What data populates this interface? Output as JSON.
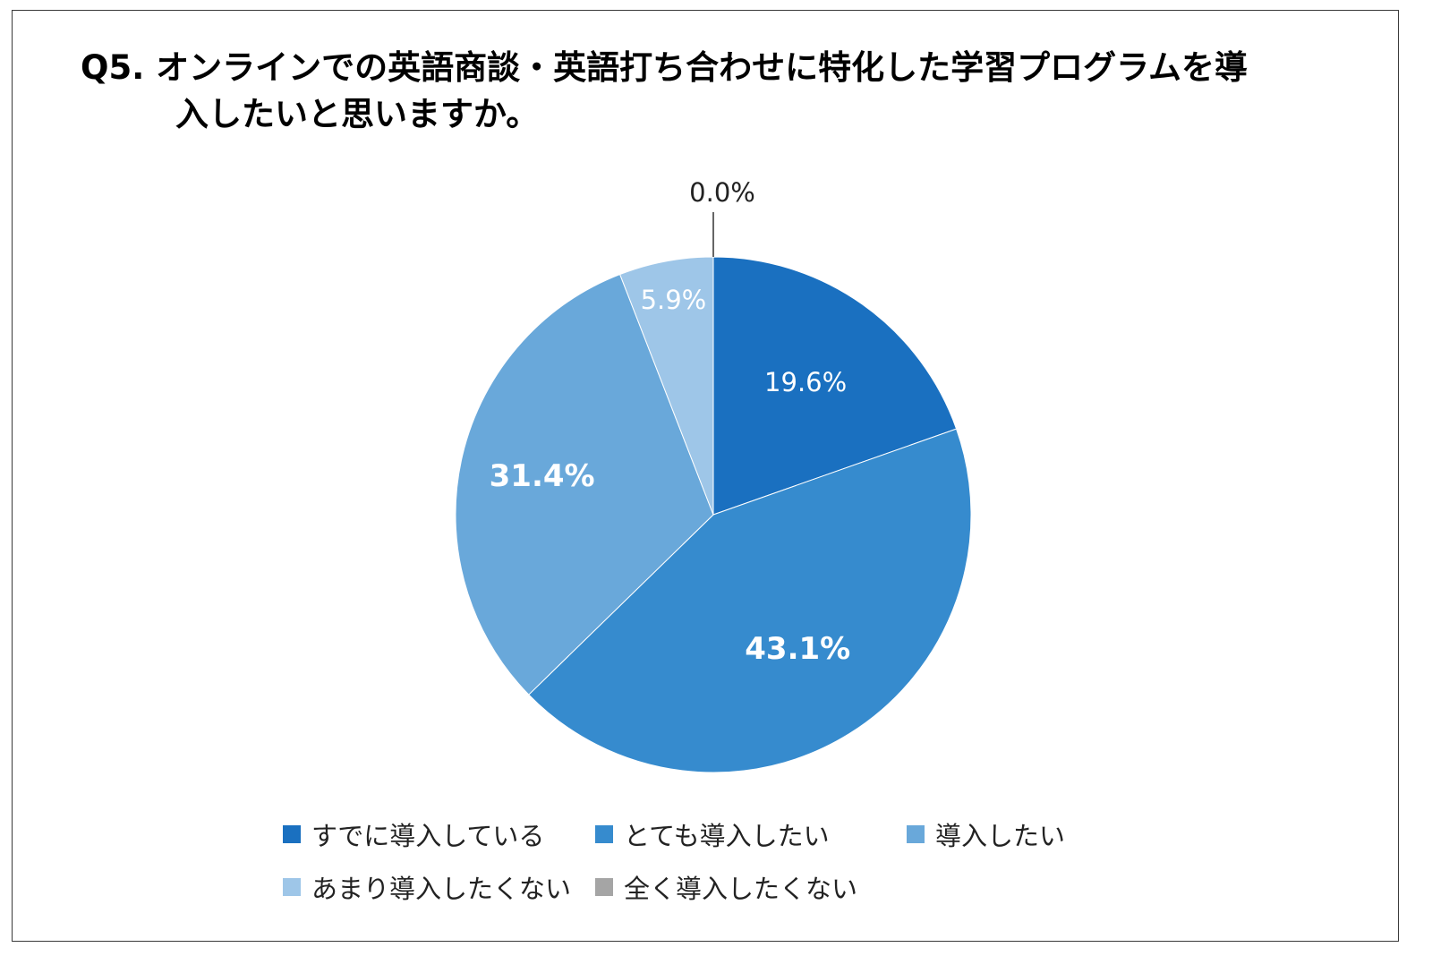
{
  "title": {
    "line1": "Q5.  オンラインでの英語商談・英語打ち合わせに特化した学習プログラムを導",
    "line2": "入したいと思いますか。"
  },
  "chart_data": {
    "type": "pie",
    "slices": [
      {
        "label": "すでに導入している",
        "value": 19.6,
        "display": "19.6%",
        "color": "#1a70c0",
        "bold": false
      },
      {
        "label": "とても導入したい",
        "value": 43.1,
        "display": "43.1%",
        "color": "#368bce",
        "bold": true
      },
      {
        "label": "導入したい",
        "value": 31.4,
        "display": "31.4%",
        "color": "#69a8da",
        "bold": true
      },
      {
        "label": "あまり導入したくない",
        "value": 5.9,
        "display": "5.9%",
        "color": "#9ec6e8",
        "bold": false
      },
      {
        "label": "全く導入したくない",
        "value": 0.0,
        "display": "0.0%",
        "color": "#a5a5a5",
        "bold": false
      }
    ],
    "legend_position": "bottom"
  }
}
